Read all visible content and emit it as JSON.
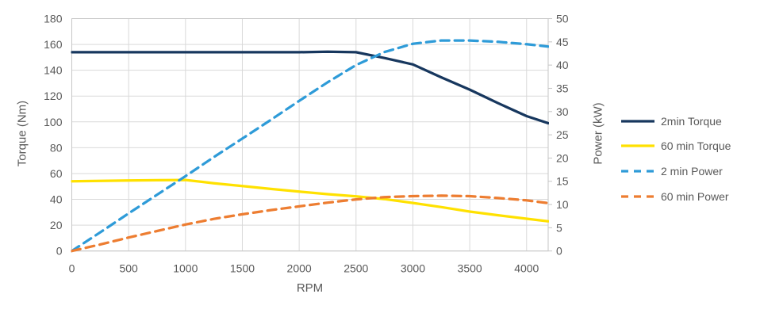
{
  "chart_data": {
    "type": "line",
    "title": "",
    "xlabel": "RPM",
    "ylabel_left": "Torque (Nm)",
    "ylabel_right": "Power (kW)",
    "xlim": [
      0,
      4190
    ],
    "ylim_left": [
      0,
      180
    ],
    "ylim_right": [
      0,
      50
    ],
    "grid": true,
    "legend_position": "right",
    "x_ticks": [
      0,
      500,
      1000,
      1500,
      2000,
      2500,
      3000,
      3500,
      4000
    ],
    "y_ticks_left": [
      0,
      20,
      40,
      60,
      80,
      100,
      120,
      140,
      160,
      180
    ],
    "y_ticks_right": [
      0,
      5,
      10,
      15,
      20,
      25,
      30,
      35,
      40,
      45,
      50
    ],
    "x": [
      0,
      250,
      500,
      750,
      1000,
      1250,
      1500,
      1750,
      2000,
      2250,
      2500,
      2750,
      3000,
      3250,
      3500,
      3750,
      4000,
      4190
    ],
    "series": [
      {
        "name": "2min Torque",
        "axis": "left",
        "style": "solid",
        "color": "#17375E",
        "values": [
          154,
          154,
          154,
          154,
          154,
          154,
          154,
          154,
          154,
          154.4,
          154,
          149.5,
          144.5,
          134.5,
          125,
          114.5,
          104.5,
          99
        ]
      },
      {
        "name": "60 min Torque",
        "axis": "left",
        "style": "solid",
        "color": "#FFE100",
        "values": [
          54,
          54.3,
          54.6,
          54.8,
          55,
          52.5,
          50.3,
          48.1,
          46,
          44,
          42.3,
          40.2,
          37.2,
          34,
          30.5,
          27.7,
          25,
          23
        ]
      },
      {
        "name": "2 min Power",
        "axis": "right",
        "style": "dashed",
        "color": "#2E9BD8",
        "values": [
          0,
          4,
          8.1,
          12.1,
          16.1,
          20.2,
          24.2,
          28.2,
          32.3,
          36.3,
          40,
          42.8,
          44.6,
          45.3,
          45.3,
          45,
          44.5,
          44
        ]
      },
      {
        "name": "60 min Power",
        "axis": "right",
        "style": "dashed",
        "color": "#ED7D31",
        "values": [
          0,
          1.4,
          2.9,
          4.3,
          5.7,
          6.9,
          7.9,
          8.8,
          9.6,
          10.4,
          11.1,
          11.6,
          11.8,
          11.9,
          11.8,
          11.4,
          10.9,
          10.3
        ]
      }
    ],
    "colors": {
      "grid": "#D9D9D9",
      "axis_line": "#C6C6C6",
      "tick_text": "#595959"
    }
  }
}
